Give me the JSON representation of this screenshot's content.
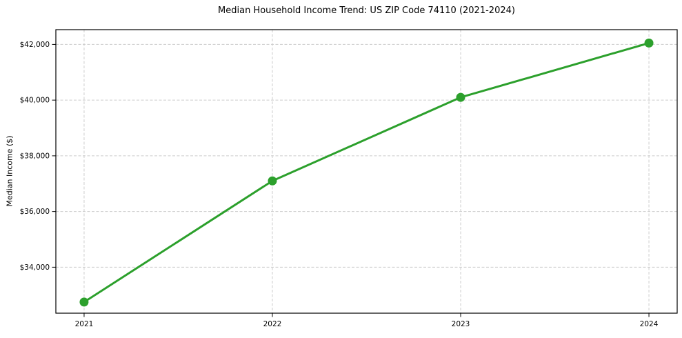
{
  "figure": {
    "background": "#ffffff"
  },
  "chart_data": {
    "type": "line",
    "title": "Median Household Income Trend: US ZIP Code 74110 (2021-2024)",
    "xlabel": "",
    "ylabel": "Median Income ($)",
    "x": [
      2021,
      2022,
      2023,
      2024
    ],
    "series": [
      {
        "name": "Median Household Income",
        "values": [
          32750,
          37100,
          40100,
          42050
        ]
      }
    ],
    "x_tick_labels": [
      "2021",
      "2022",
      "2023",
      "2024"
    ],
    "y_ticks": [
      34000,
      36000,
      38000,
      40000,
      42000
    ],
    "y_tick_labels": [
      "$34,000",
      "$36,000",
      "$38,000",
      "$40,000",
      "$42,000"
    ],
    "xlim": [
      2020.85,
      2024.15
    ],
    "ylim": [
      32350,
      42530
    ],
    "grid": true,
    "legend": "none",
    "line_color": "#2ca02c",
    "marker_color": "#2ca02c",
    "grid_color": "#cccccc",
    "spine_color": "#000000",
    "tick_color": "#000000",
    "text_color": "#000000"
  }
}
